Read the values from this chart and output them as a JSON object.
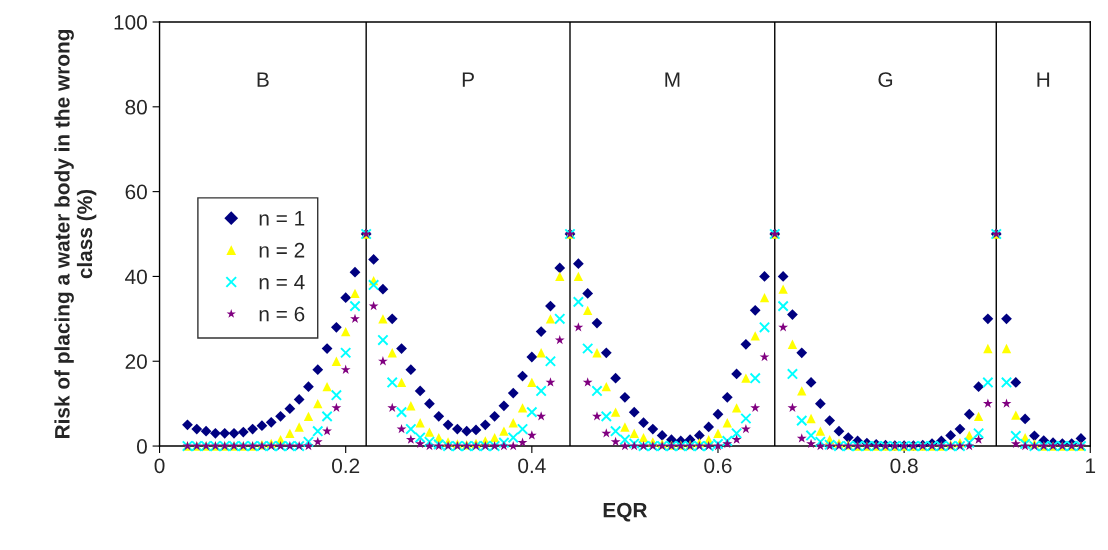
{
  "chart_data": {
    "type": "scatter",
    "xlabel": "EQR",
    "ylabel": "Risk of placing a water body in the wrong class (%)",
    "x": [
      0.03,
      0.04,
      0.05,
      0.06,
      0.07,
      0.08,
      0.09,
      0.1,
      0.11,
      0.12,
      0.13,
      0.14,
      0.15,
      0.16,
      0.17,
      0.18,
      0.19,
      0.2,
      0.21,
      0.222,
      0.23,
      0.24,
      0.25,
      0.26,
      0.27,
      0.28,
      0.29,
      0.3,
      0.31,
      0.32,
      0.33,
      0.34,
      0.35,
      0.36,
      0.37,
      0.38,
      0.39,
      0.4,
      0.41,
      0.42,
      0.43,
      0.441,
      0.45,
      0.46,
      0.47,
      0.48,
      0.49,
      0.5,
      0.51,
      0.52,
      0.53,
      0.54,
      0.55,
      0.56,
      0.57,
      0.58,
      0.59,
      0.6,
      0.61,
      0.62,
      0.63,
      0.64,
      0.65,
      0.661,
      0.67,
      0.68,
      0.69,
      0.7,
      0.71,
      0.72,
      0.73,
      0.74,
      0.75,
      0.76,
      0.77,
      0.78,
      0.79,
      0.8,
      0.81,
      0.82,
      0.83,
      0.84,
      0.85,
      0.86,
      0.87,
      0.88,
      0.89,
      0.899,
      0.91,
      0.92,
      0.93,
      0.94,
      0.95,
      0.96,
      0.97,
      0.98,
      0.99
    ],
    "series": [
      {
        "name": "n = 1",
        "color": "#000080",
        "marker": "diamond",
        "values": [
          5,
          4,
          3.5,
          3,
          3,
          3,
          3.3,
          4,
          4.8,
          5.6,
          7,
          8.8,
          11,
          14,
          18,
          23,
          28,
          35,
          41,
          50,
          44,
          37,
          30,
          23,
          18,
          13,
          10,
          7,
          5,
          4,
          3.5,
          3.8,
          5,
          7,
          9.5,
          12.5,
          16.5,
          21,
          27,
          33,
          42,
          50,
          43,
          36,
          29,
          22,
          16,
          11.5,
          8,
          5.5,
          4,
          2.5,
          1.5,
          1.2,
          1.5,
          2.5,
          4.5,
          7.5,
          11.5,
          17,
          24,
          32,
          40,
          50,
          40,
          31,
          22,
          15,
          10,
          6,
          3.5,
          2,
          1.2,
          0.7,
          0.4,
          0.2,
          0.1,
          0.1,
          0.1,
          0.2,
          0.6,
          1.2,
          2.5,
          4,
          7.5,
          14,
          30,
          50,
          30,
          15,
          6.4,
          2.4,
          1.3,
          0.8,
          0.6,
          0.6,
          1.8
        ]
      },
      {
        "name": "n = 2",
        "color": "#ffff00",
        "marker": "triangle",
        "values": [
          0,
          0,
          0,
          0,
          0,
          0,
          0,
          0,
          0.3,
          0.6,
          1.5,
          3,
          4.5,
          7,
          10,
          14,
          20,
          27,
          36,
          50,
          39,
          30,
          22,
          15,
          9.5,
          5.5,
          3.3,
          2,
          1,
          0.5,
          0.3,
          0.6,
          1.2,
          2,
          3.5,
          5.5,
          9,
          15,
          22,
          30,
          40,
          50,
          40,
          32,
          22,
          14,
          8,
          4.5,
          3,
          2,
          1,
          0.5,
          0.2,
          0.2,
          0.3,
          0.8,
          1.5,
          3,
          5.5,
          9,
          16,
          26,
          35,
          50,
          37,
          24,
          13,
          6.5,
          3.5,
          1.5,
          0.7,
          0.3,
          0,
          0,
          0,
          0,
          0,
          0,
          0,
          0,
          0,
          0,
          0.3,
          0.8,
          2.5,
          7,
          23,
          50,
          23,
          7.3,
          2,
          0.5,
          0,
          0,
          0,
          0,
          0
        ]
      },
      {
        "name": "n = 4",
        "color": "#00ffff",
        "marker": "cross",
        "values": [
          0,
          0,
          0,
          0,
          0,
          0,
          0,
          0,
          0,
          0,
          0,
          0,
          0,
          1,
          3.5,
          7,
          12,
          22,
          33,
          50,
          38,
          25,
          15,
          8,
          4,
          2,
          1,
          0.4,
          0,
          0,
          0,
          0,
          0,
          0,
          0.8,
          2,
          4,
          8,
          13,
          20,
          30,
          50,
          34,
          23,
          13,
          7,
          3.5,
          1.5,
          0.6,
          0,
          0,
          0,
          0,
          0,
          0,
          0,
          0,
          0.5,
          1.2,
          3,
          6.5,
          16,
          28,
          50,
          33,
          17,
          6,
          2.5,
          1,
          0.3,
          0,
          0,
          0,
          0,
          0,
          0,
          0,
          0,
          0,
          0,
          0,
          0,
          0,
          0,
          0.8,
          3,
          15,
          50,
          15,
          2.4,
          0.5,
          0,
          0,
          0,
          0,
          0,
          0
        ]
      },
      {
        "name": "n = 6",
        "color": "#800080",
        "marker": "star",
        "values": [
          0,
          0,
          0,
          0,
          0,
          0,
          0,
          0,
          0,
          0,
          0,
          0,
          0,
          0,
          1,
          3.5,
          9,
          18,
          30,
          50,
          33,
          20,
          9,
          4,
          1.5,
          0.5,
          0,
          0,
          0,
          0,
          0,
          0,
          0,
          0,
          0,
          0,
          0.8,
          2.5,
          7,
          15,
          25,
          50,
          28,
          15,
          7,
          3,
          1,
          0,
          0,
          0,
          0,
          0,
          0,
          0,
          0,
          0,
          0,
          0,
          0.5,
          1.5,
          4,
          9,
          21,
          50,
          28,
          9,
          1.8,
          0.5,
          0,
          0,
          0,
          0,
          0,
          0,
          0,
          0,
          0,
          0,
          0,
          0,
          0,
          0,
          0,
          0,
          0,
          1.5,
          10,
          50,
          10,
          0.5,
          0,
          0,
          0,
          0,
          0,
          0,
          0
        ]
      }
    ],
    "xlim": [
      0,
      1
    ],
    "ylim": [
      0,
      100
    ],
    "xticks": [
      0,
      0.2,
      0.4,
      0.6,
      0.8,
      1
    ],
    "yticks": [
      0,
      20,
      40,
      60,
      80,
      100
    ],
    "ref_lines": [
      {
        "axis": "x",
        "value": 0.222,
        "color": "#000000"
      },
      {
        "axis": "x",
        "value": 0.441,
        "color": "#000000"
      },
      {
        "axis": "x",
        "value": 0.661,
        "color": "#000000"
      },
      {
        "axis": "x",
        "value": 0.899,
        "color": "#000000"
      }
    ],
    "annotations": [
      "B",
      "P",
      "M",
      "G",
      "H"
    ],
    "legend": "left",
    "grid": false
  }
}
